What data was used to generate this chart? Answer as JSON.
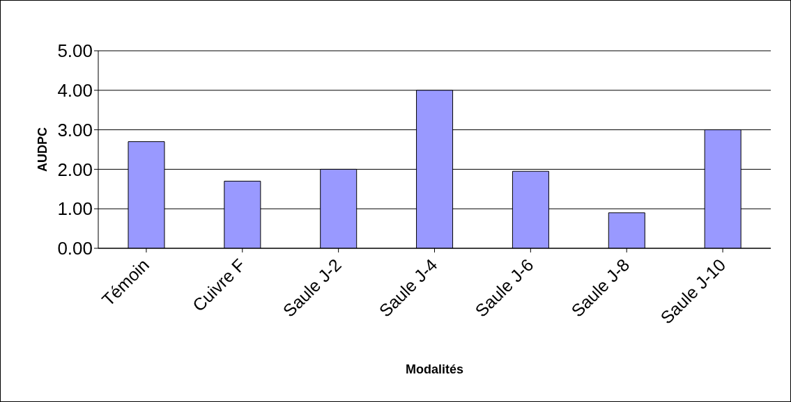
{
  "chart_data": {
    "type": "bar",
    "xlabel": "Modalités",
    "ylabel": "AUDPC",
    "categories": [
      "Témoin",
      "Cuivre F",
      "Saule J-2",
      "Saule J-4",
      "Saule J-6",
      "Saule J-8",
      "Saule J-10"
    ],
    "values": [
      2.7,
      1.7,
      2.0,
      4.0,
      1.95,
      0.9,
      3.0
    ],
    "color": "#9999ff",
    "ylim": [
      0,
      5
    ],
    "yticks": [
      {
        "value": 0,
        "label": "0.00"
      },
      {
        "value": 1,
        "label": "1.00"
      },
      {
        "value": 2,
        "label": "2.00"
      },
      {
        "value": 3,
        "label": "3.00"
      },
      {
        "value": 4,
        "label": "4.00"
      },
      {
        "value": 5,
        "label": "5.00"
      }
    ],
    "grid": "y",
    "legend": false
  }
}
